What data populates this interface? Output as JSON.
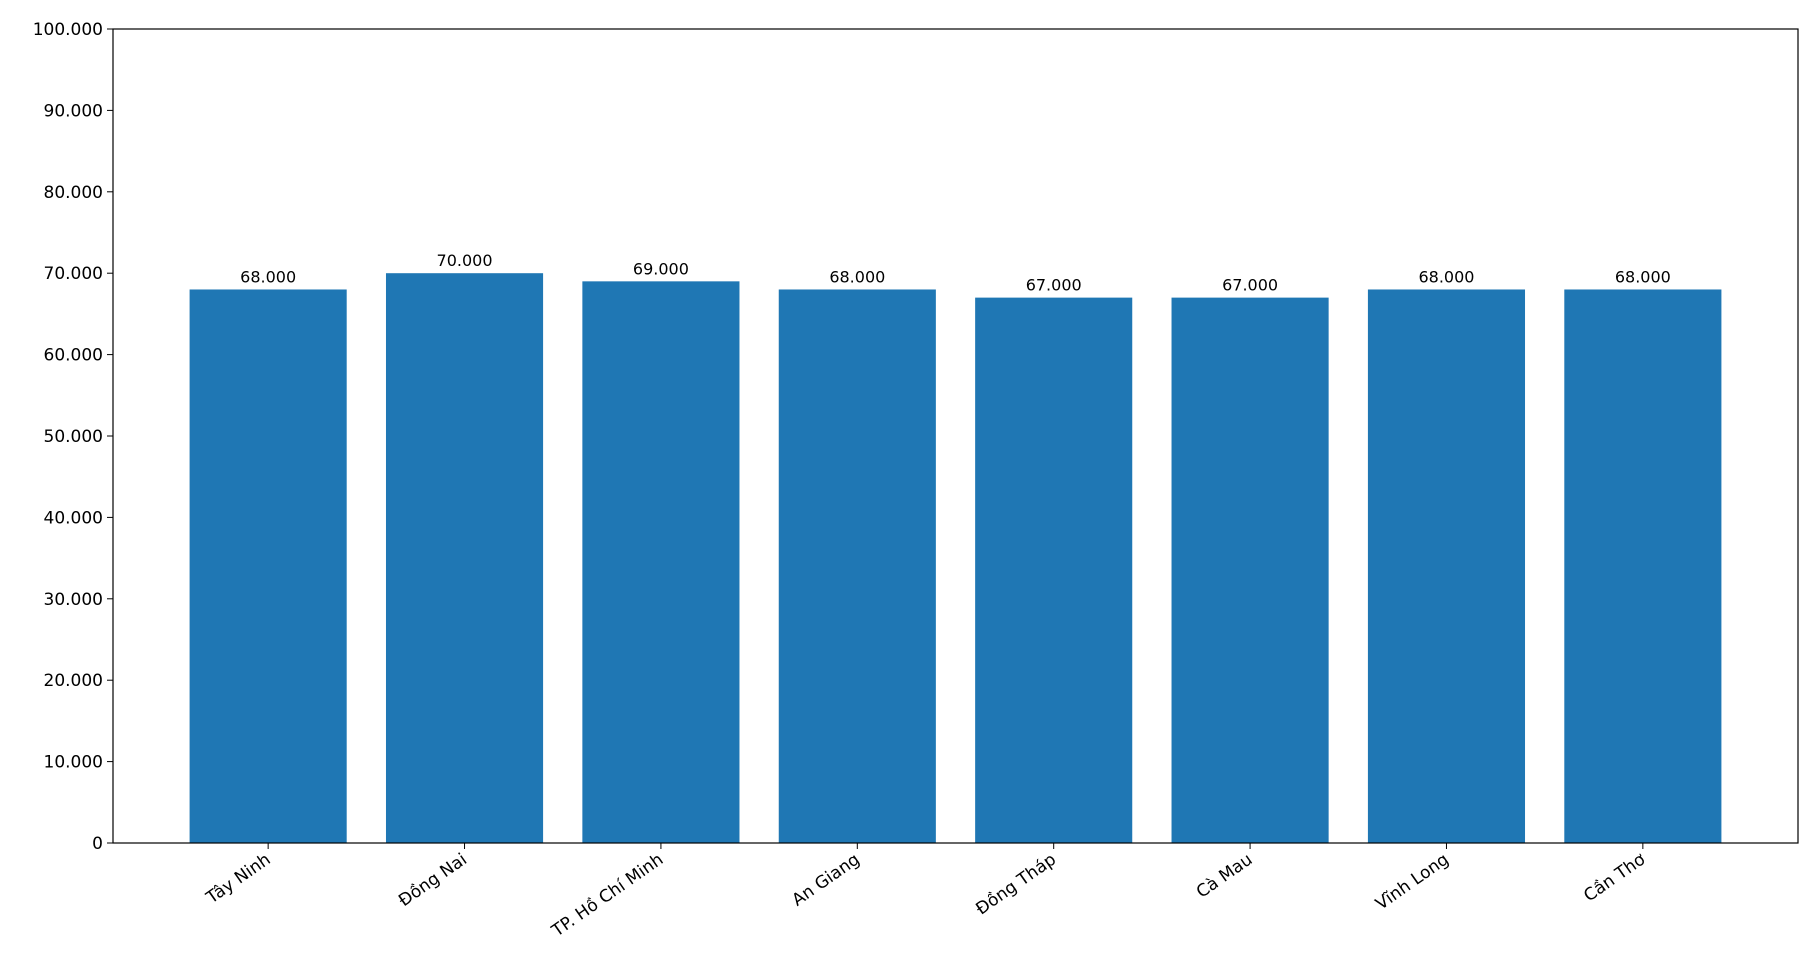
{
  "chart_data": {
    "type": "bar",
    "categories": [
      "Tây Ninh",
      "Đồng Nai",
      "TP. Hồ Chí Minh",
      "An Giang",
      "Đồng Tháp",
      "Cà Mau",
      "Vĩnh Long",
      "Cần Thơ"
    ],
    "values": [
      68000,
      70000,
      69000,
      68000,
      67000,
      67000,
      68000,
      68000
    ],
    "value_labels": [
      "68.000",
      "70.000",
      "69.000",
      "68.000",
      "67.000",
      "67.000",
      "68.000",
      "68.000"
    ],
    "color": "#1f77b4",
    "ylim": [
      0,
      100000
    ],
    "yticks": [
      0,
      {
        "value": 10000,
        "label": "10.000"
      },
      {
        "value": 20000,
        "label": "20.000"
      },
      {
        "value": 30000,
        "label": "30.000"
      },
      {
        "value": 40000,
        "label": "40.000"
      },
      {
        "value": 50000,
        "label": "50.000"
      },
      {
        "value": 60000,
        "label": "60.000"
      },
      {
        "value": 70000,
        "label": "70.000"
      },
      {
        "value": 80000,
        "label": "80.000"
      },
      {
        "value": 90000,
        "label": "90.000"
      },
      {
        "value": 100000,
        "label": "100.000"
      }
    ],
    "grid": false
  }
}
